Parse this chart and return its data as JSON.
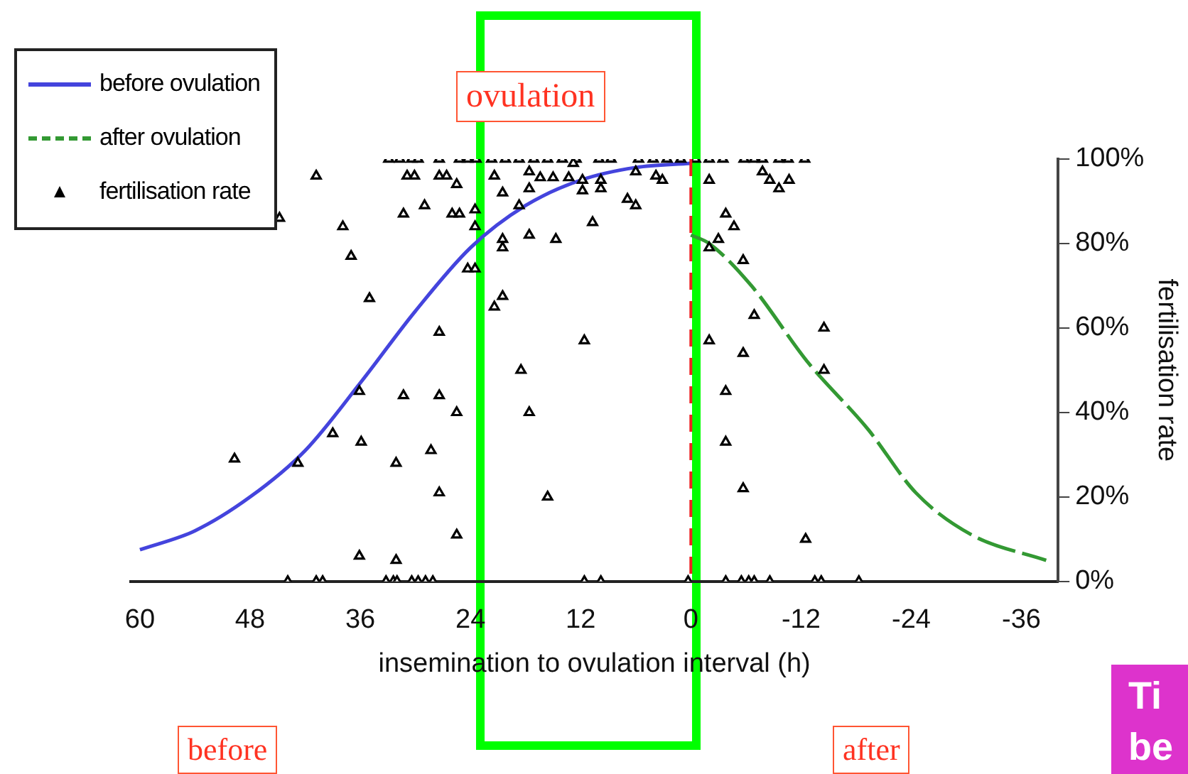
{
  "chart_data": {
    "type": "line",
    "xlabel": "insemination to ovulation interval (h)",
    "ylabel": "fertilisation rate",
    "xlim": [
      61,
      -40
    ],
    "xticks": [
      60,
      48,
      36,
      24,
      12,
      0,
      -12,
      -24,
      -36
    ],
    "ylim": [
      0,
      100
    ],
    "yticks": [
      {
        "value": 0,
        "label": "0%"
      },
      {
        "value": 20,
        "label": "20%"
      },
      {
        "value": 40,
        "label": "40%"
      },
      {
        "value": 60,
        "label": "60%"
      },
      {
        "value": 80,
        "label": "80%"
      },
      {
        "value": 100,
        "label": "100%"
      }
    ],
    "grid": false,
    "legend": "top left",
    "ref_lines": [
      {
        "axis": "x",
        "value": 0,
        "color": "#ee2222",
        "line_style": "dashed"
      }
    ],
    "annotations": [
      "ovulation",
      "before",
      "after",
      "Ti be"
    ],
    "series": [
      {
        "name": "before ovulation",
        "color": "#4444dd",
        "line_style": "solid",
        "marker": "none",
        "x": [
          60,
          54,
          48,
          42,
          36,
          30,
          24,
          18,
          12,
          6,
          0
        ],
        "values": [
          7.5,
          12,
          20,
          31,
          47,
          64,
          79,
          89,
          95,
          98,
          99
        ]
      },
      {
        "name": "after ovulation",
        "color": "#339933",
        "line_style": "dashed",
        "marker": "none",
        "x": [
          0,
          -2,
          -6.6,
          -12.7,
          -19.3,
          -24.5,
          -30.6,
          -38.7
        ],
        "values": [
          82,
          80,
          70,
          52,
          36,
          21,
          11,
          5
        ]
      },
      {
        "name": "fertilisation rate",
        "type": "scatter",
        "color": "#000000",
        "marker": "triangle",
        "x": [
          32.9,
          31.7,
          30.4,
          29.7,
          27.4,
          25.2,
          24.3,
          23.4,
          21.7,
          20.2,
          18.7,
          17.1,
          15.6,
          14,
          12.5,
          10,
          8.7,
          5.7,
          4.1,
          2.6,
          1.1,
          -0.5,
          -2,
          -3.5,
          -5.8,
          -6.9,
          -7.8,
          -9.6,
          -10.6,
          -12.4,
          40.8,
          44.8,
          37.9,
          37,
          35,
          27.4,
          31.3,
          29,
          30.9,
          30.1,
          27.4,
          26.6,
          25.5,
          26,
          25.2,
          23.5,
          23.5,
          24.3,
          23.5,
          36.1,
          31.3,
          27.4,
          25.5,
          39,
          35.9,
          49.7,
          42.8,
          32.1,
          28.3,
          27.4,
          25.5,
          36.1,
          32.1,
          43.9,
          40.8,
          40.1,
          33.2,
          32.4,
          32,
          30.4,
          29.7,
          28.9,
          28.1,
          21.4,
          17.6,
          20.5,
          17.6,
          16.4,
          15,
          13.3,
          11.8,
          11.8,
          9.8,
          9.8,
          12.8,
          6,
          3.8,
          3.1,
          6.9,
          6,
          18.7,
          10.7,
          17.6,
          14.7,
          20.5,
          20.5,
          20.5,
          21.4,
          11.6,
          18.5,
          17.6,
          15.6,
          11.6,
          9.8,
          0.3,
          -2,
          -7.8,
          -8.6,
          -9.6,
          -10.7,
          -3.8,
          -4.7,
          -3,
          -2,
          -5.7,
          -6.9,
          -2,
          -5.7,
          -3.8,
          -3.8,
          -5.7,
          -14.5,
          -14.5,
          -12.5,
          -3.8,
          -5.5,
          -6.3,
          -6.9,
          -8.6,
          -13.5,
          -14.2,
          -18.3
        ],
        "values": [
          100,
          100,
          100,
          100,
          100,
          100,
          100,
          100,
          100,
          100,
          100,
          100,
          100,
          100,
          100,
          100,
          100,
          100,
          100,
          100,
          100,
          100,
          100,
          100,
          100,
          100,
          100,
          100,
          100,
          100,
          96,
          86,
          84,
          77,
          67,
          59,
          87,
          89,
          96,
          96,
          96,
          96,
          94,
          87,
          87,
          88,
          84,
          74,
          74,
          45,
          44,
          44,
          40,
          35,
          33,
          29,
          28,
          28,
          31,
          21,
          11,
          6,
          5,
          0,
          0,
          0,
          0,
          0,
          0,
          0,
          0,
          0,
          0,
          96,
          97,
          92,
          93,
          95.6,
          95.6,
          95.6,
          95,
          92.5,
          95,
          93,
          99,
          97,
          96,
          95,
          90.5,
          89,
          89,
          85,
          82,
          81,
          81,
          79,
          67.5,
          65,
          57,
          50,
          40,
          20,
          0,
          0,
          0,
          95,
          97,
          95,
          93,
          95,
          87,
          84,
          81,
          79,
          76,
          63,
          57,
          54,
          45,
          33,
          22,
          60,
          50,
          10,
          0,
          0,
          0,
          0,
          0,
          0,
          0,
          0
        ]
      }
    ]
  }
}
